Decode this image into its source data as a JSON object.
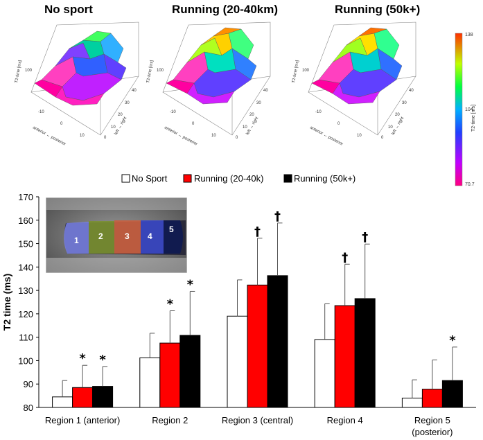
{
  "surface_plots": [
    {
      "title": "No sport",
      "zlabel": "T2-time [ms]",
      "xlabel": "anterior ↔ posterior",
      "ylabel": "left ↔ right",
      "z_ticks": [
        "100"
      ],
      "x_ticks": [
        "-10",
        "0",
        "10"
      ],
      "y_ticks": [
        "0",
        "10",
        "20",
        "30",
        "40"
      ]
    },
    {
      "title": "Running (20-40km)",
      "zlabel": "T2-time [ms]",
      "xlabel": "anterior ↔ posterior",
      "ylabel": "left ↔ right",
      "z_ticks": [
        "100"
      ],
      "x_ticks": [
        "-10",
        "0",
        "10"
      ],
      "y_ticks": [
        "0",
        "10",
        "20",
        "30",
        "40"
      ]
    },
    {
      "title": "Running (50k+)",
      "zlabel": "T2-time [ms]",
      "xlabel": "anterior ↔ posterior",
      "ylabel": "left ↔ right",
      "z_ticks": [
        "100"
      ],
      "x_ticks": [
        "-10",
        "0",
        "10"
      ],
      "y_ticks": [
        "0",
        "10",
        "20",
        "30",
        "40"
      ]
    }
  ],
  "colorbar": {
    "label": "T2-time [ms]",
    "max": "138",
    "mid": "104",
    "min": "70.7"
  },
  "inset": {
    "region_labels": [
      "1",
      "2",
      "3",
      "4",
      "5"
    ]
  },
  "chart_data": {
    "type": "bar",
    "ylabel": "T2 time (ms)",
    "ylim": [
      80,
      170
    ],
    "yticks": [
      80,
      90,
      100,
      110,
      120,
      130,
      140,
      150,
      160,
      170
    ],
    "categories": [
      "Region 1 (anterior)",
      "Region 2",
      "Region 3 (central)",
      "Region 4",
      "Region 5"
    ],
    "category_second_lines": [
      "",
      "",
      "",
      "",
      "(posterior)"
    ],
    "legend_position": "top-center",
    "series": [
      {
        "name": "No Sport",
        "color": "#ffffff",
        "values": [
          84.5,
          101.2,
          119.0,
          109.0,
          84.0
        ],
        "errors": [
          7.0,
          10.5,
          15.5,
          15.3,
          7.8
        ],
        "markers": [
          "",
          "",
          "",
          "",
          ""
        ]
      },
      {
        "name": "Running (20-40k)",
        "color": "#ff0000",
        "values": [
          88.5,
          107.5,
          132.3,
          123.5,
          87.8
        ],
        "errors": [
          9.5,
          13.8,
          20.0,
          17.7,
          12.5
        ],
        "markers": [
          "*",
          "*",
          "†",
          "†",
          ""
        ]
      },
      {
        "name": "Running (50k+)",
        "color": "#000000",
        "values": [
          89.0,
          110.8,
          136.3,
          126.5,
          91.5
        ],
        "errors": [
          8.5,
          18.8,
          22.5,
          23.3,
          14.3
        ],
        "markers": [
          "*",
          "*",
          "†",
          "†",
          "*"
        ]
      }
    ]
  }
}
